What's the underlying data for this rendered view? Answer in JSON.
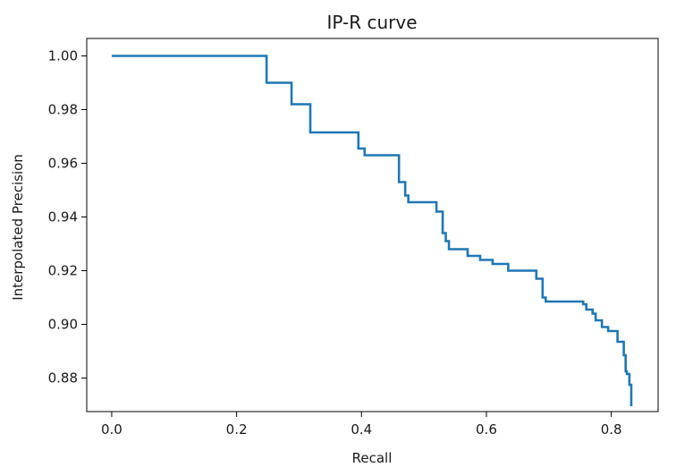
{
  "chart_data": {
    "type": "line",
    "title": "IP-R curve",
    "xlabel": "Recall",
    "ylabel": "Interpolated Precision",
    "xlim": [
      -0.04,
      0.875
    ],
    "ylim": [
      0.8675,
      1.0065
    ],
    "xticks": [
      "0.0",
      "0.2",
      "0.4",
      "0.6",
      "0.8"
    ],
    "yticks": [
      "0.88",
      "0.90",
      "0.92",
      "0.94",
      "0.96",
      "0.98",
      "1.00"
    ],
    "grid": false,
    "line_color": "#1f77b4",
    "series": [
      {
        "step": "post",
        "x": [
          0.0,
          0.248,
          0.288,
          0.318,
          0.395,
          0.405,
          0.46,
          0.47,
          0.475,
          0.52,
          0.53,
          0.535,
          0.54,
          0.57,
          0.59,
          0.61,
          0.635,
          0.68,
          0.69,
          0.695,
          0.755,
          0.76,
          0.77,
          0.775,
          0.785,
          0.795,
          0.81,
          0.82,
          0.823,
          0.825,
          0.829,
          0.832
        ],
        "y": [
          1.0,
          0.99,
          0.982,
          0.9715,
          0.9655,
          0.963,
          0.953,
          0.948,
          0.9455,
          0.942,
          0.934,
          0.931,
          0.928,
          0.9255,
          0.924,
          0.9225,
          0.92,
          0.917,
          0.91,
          0.9085,
          0.9075,
          0.9055,
          0.904,
          0.9015,
          0.899,
          0.8975,
          0.8935,
          0.8885,
          0.8825,
          0.8815,
          0.8775,
          0.8695
        ]
      }
    ]
  }
}
